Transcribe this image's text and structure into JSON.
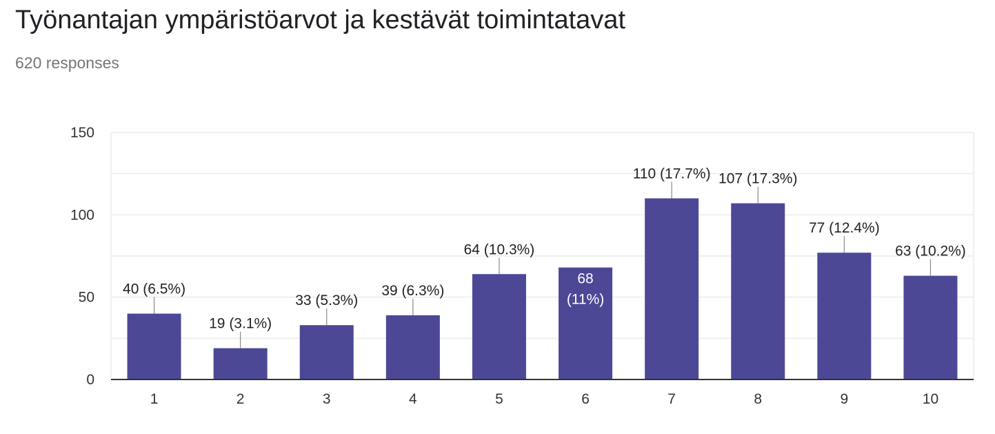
{
  "header": {
    "title": "Työnantajan ympäristöarvot ja kestävät toimintatavat",
    "responses": "620 responses"
  },
  "colors": {
    "bar": "#4c4896",
    "grid": "#ebebeb",
    "axis": "#333333",
    "label": "#222222",
    "inner_label": "#ffffff"
  },
  "chart_data": {
    "type": "bar",
    "categories": [
      "1",
      "2",
      "3",
      "4",
      "5",
      "6",
      "7",
      "8",
      "9",
      "10"
    ],
    "values": [
      40,
      19,
      33,
      39,
      64,
      68,
      110,
      107,
      77,
      63
    ],
    "data_labels": [
      "40 (6.5%)",
      "19 (3.1%)",
      "33 (5.3%)",
      "39 (6.3%)",
      "64 (10.3%)",
      "68 (11%)",
      "110 (17.7%)",
      "107 (17.3%)",
      "77 (12.4%)",
      "63 (10.2%)"
    ],
    "inside_label_index": 5,
    "ylim": [
      0,
      150
    ],
    "yticks": [
      0,
      50,
      100,
      150
    ],
    "minor_grid_step": 25,
    "grid": true,
    "legend": "none",
    "xlabel": "",
    "ylabel": ""
  }
}
